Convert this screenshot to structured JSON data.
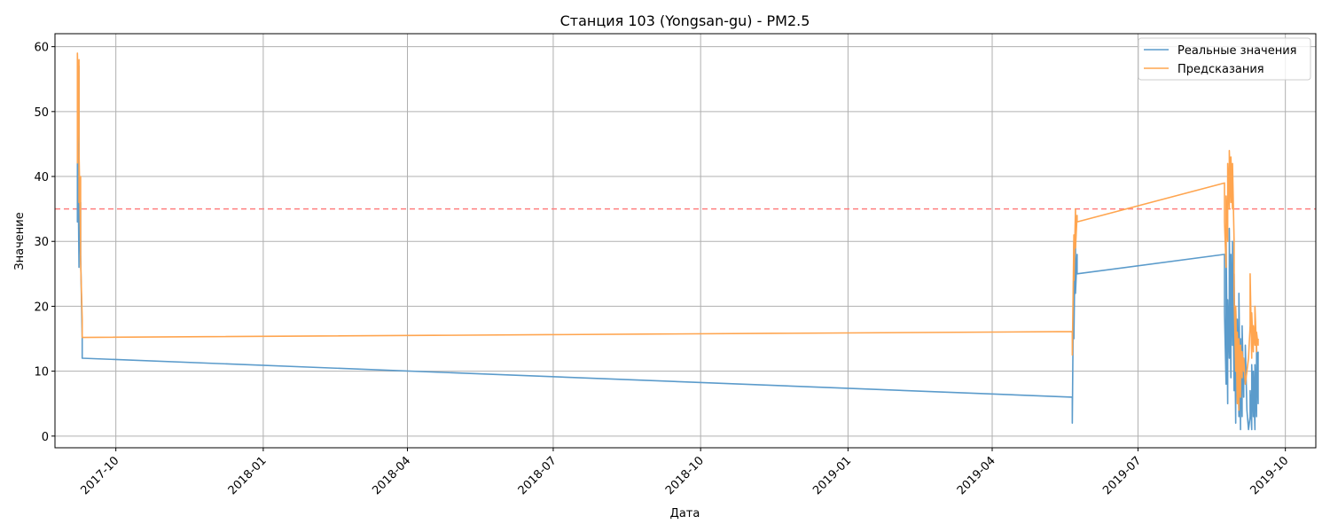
{
  "chart_data": {
    "type": "line",
    "title": "Станция 103 (Yongsan-gu) - PM2.5",
    "xlabel": "Дата",
    "ylabel": "Значение",
    "ylim": [
      -1.8,
      62
    ],
    "xlim": [
      "2017-08-24",
      "2019-10-20"
    ],
    "grid": true,
    "legend_position": "top-right",
    "yticks": [
      0,
      10,
      20,
      30,
      40,
      50,
      60
    ],
    "xticks": [
      "2017-10",
      "2018-01",
      "2018-04",
      "2018-07",
      "2018-10",
      "2019-01",
      "2019-04",
      "2019-07",
      "2019-10"
    ],
    "threshold": {
      "value": 35,
      "color": "#ff7f7f",
      "style": "dashed"
    },
    "series": [
      {
        "name": "Реальные значения",
        "color": "#5b9bcb",
        "points": [
          [
            "2017-09-07",
            44
          ],
          [
            "2017-09-07",
            33
          ],
          [
            "2017-09-07",
            50
          ],
          [
            "2017-09-08",
            26
          ],
          [
            "2017-09-08",
            57
          ],
          [
            "2017-09-08",
            30
          ],
          [
            "2017-09-08",
            41
          ],
          [
            "2017-09-09",
            27
          ],
          [
            "2017-09-09",
            36
          ],
          [
            "2017-09-09",
            28
          ],
          [
            "2017-09-10",
            15
          ],
          [
            "2017-09-10",
            12
          ],
          [
            "2019-05-21",
            6
          ],
          [
            "2019-05-21",
            2
          ],
          [
            "2019-05-22",
            30
          ],
          [
            "2019-05-22",
            15
          ],
          [
            "2019-05-23",
            34
          ],
          [
            "2019-05-23",
            22
          ],
          [
            "2019-05-24",
            28
          ],
          [
            "2019-05-24",
            25
          ],
          [
            "2019-08-24",
            28
          ],
          [
            "2019-08-24",
            19
          ],
          [
            "2019-08-25",
            8
          ],
          [
            "2019-08-25",
            30
          ],
          [
            "2019-08-26",
            5
          ],
          [
            "2019-08-26",
            21
          ],
          [
            "2019-08-27",
            12
          ],
          [
            "2019-08-27",
            32
          ],
          [
            "2019-08-28",
            9
          ],
          [
            "2019-08-28",
            28
          ],
          [
            "2019-08-29",
            14
          ],
          [
            "2019-08-29",
            30
          ],
          [
            "2019-08-30",
            7
          ],
          [
            "2019-08-30",
            25
          ],
          [
            "2019-08-31",
            2
          ],
          [
            "2019-08-31",
            20
          ],
          [
            "2019-09-01",
            8
          ],
          [
            "2019-09-01",
            18
          ],
          [
            "2019-09-02",
            3
          ],
          [
            "2019-09-02",
            22
          ],
          [
            "2019-09-03",
            1
          ],
          [
            "2019-09-03",
            15
          ],
          [
            "2019-09-04",
            3
          ],
          [
            "2019-09-04",
            17
          ],
          [
            "2019-09-05",
            6
          ],
          [
            "2019-09-05",
            12
          ],
          [
            "2019-09-06",
            9
          ],
          [
            "2019-09-06",
            14
          ],
          [
            "2019-09-07",
            4
          ],
          [
            "2019-09-08",
            1
          ],
          [
            "2019-09-09",
            3
          ],
          [
            "2019-09-09",
            7
          ],
          [
            "2019-09-10",
            1
          ],
          [
            "2019-09-10",
            11
          ],
          [
            "2019-09-11",
            3
          ],
          [
            "2019-09-11",
            10
          ],
          [
            "2019-09-12",
            1
          ],
          [
            "2019-09-12",
            11
          ],
          [
            "2019-09-13",
            3
          ],
          [
            "2019-09-13",
            14
          ],
          [
            "2019-09-14",
            5
          ],
          [
            "2019-09-14",
            13
          ]
        ]
      },
      {
        "name": "Предсказания",
        "color": "#ffa54f",
        "points": [
          [
            "2017-09-07",
            42
          ],
          [
            "2017-09-07",
            52
          ],
          [
            "2017-09-07",
            59
          ],
          [
            "2017-09-08",
            45
          ],
          [
            "2017-09-08",
            58
          ],
          [
            "2017-09-08",
            36
          ],
          [
            "2017-09-08",
            44
          ],
          [
            "2017-09-09",
            30
          ],
          [
            "2017-09-09",
            40
          ],
          [
            "2017-09-09",
            27
          ],
          [
            "2017-09-10",
            18
          ],
          [
            "2017-09-10",
            15.2
          ],
          [
            "2019-05-21",
            16.1
          ],
          [
            "2019-05-21",
            12.5
          ],
          [
            "2019-05-22",
            31
          ],
          [
            "2019-05-22",
            24
          ],
          [
            "2019-05-23",
            35
          ],
          [
            "2019-05-23",
            29
          ],
          [
            "2019-05-24",
            34
          ],
          [
            "2019-05-24",
            33
          ],
          [
            "2019-08-24",
            39
          ],
          [
            "2019-08-24",
            33
          ],
          [
            "2019-08-25",
            26
          ],
          [
            "2019-08-25",
            37
          ],
          [
            "2019-08-26",
            30
          ],
          [
            "2019-08-26",
            42
          ],
          [
            "2019-08-27",
            35
          ],
          [
            "2019-08-27",
            44
          ],
          [
            "2019-08-28",
            36
          ],
          [
            "2019-08-28",
            43
          ],
          [
            "2019-08-29",
            35
          ],
          [
            "2019-08-29",
            42
          ],
          [
            "2019-08-30",
            30
          ],
          [
            "2019-08-30",
            22
          ],
          [
            "2019-08-31",
            10
          ],
          [
            "2019-08-31",
            20
          ],
          [
            "2019-09-01",
            5
          ],
          [
            "2019-09-01",
            16
          ],
          [
            "2019-09-02",
            4
          ],
          [
            "2019-09-02",
            15
          ],
          [
            "2019-09-03",
            6
          ],
          [
            "2019-09-03",
            14
          ],
          [
            "2019-09-04",
            9
          ],
          [
            "2019-09-04",
            13
          ],
          [
            "2019-09-05",
            10
          ],
          [
            "2019-09-05",
            12
          ],
          [
            "2019-09-06",
            8
          ],
          [
            "2019-09-07",
            10
          ],
          [
            "2019-09-08",
            12
          ],
          [
            "2019-09-09",
            17
          ],
          [
            "2019-09-09",
            25
          ],
          [
            "2019-09-10",
            12
          ],
          [
            "2019-09-10",
            19
          ],
          [
            "2019-09-11",
            13
          ],
          [
            "2019-09-11",
            17
          ],
          [
            "2019-09-12",
            14
          ],
          [
            "2019-09-12",
            20
          ],
          [
            "2019-09-13",
            13
          ],
          [
            "2019-09-13",
            16
          ],
          [
            "2019-09-14",
            14
          ],
          [
            "2019-09-14",
            15
          ]
        ]
      }
    ]
  }
}
